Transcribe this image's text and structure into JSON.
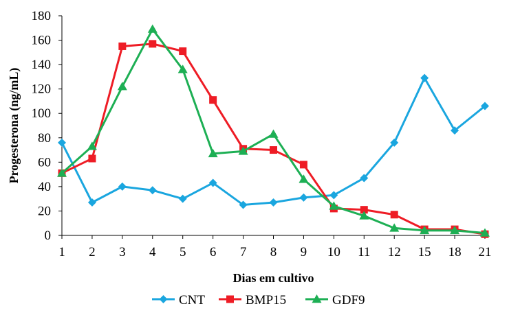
{
  "chart_data": {
    "type": "line",
    "title": "",
    "xlabel": "Dias em cultivo",
    "ylabel": "Progesterona (ng/mL)",
    "categories": [
      "1",
      "2",
      "3",
      "4",
      "5",
      "6",
      "7",
      "8",
      "9",
      "10",
      "11",
      "12",
      "15",
      "18",
      "21"
    ],
    "ylim": [
      0,
      180
    ],
    "yticks": [
      0,
      20,
      40,
      60,
      80,
      100,
      120,
      140,
      160,
      180
    ],
    "grid": false,
    "legend_position": "bottom",
    "series": [
      {
        "name": "CNT",
        "color": "#1aa6df",
        "marker": "diamond",
        "values": [
          76,
          27,
          40,
          37,
          30,
          43,
          25,
          27,
          31,
          33,
          47,
          76,
          129,
          86,
          106
        ]
      },
      {
        "name": "BMP15",
        "color": "#ee1c25",
        "marker": "square",
        "values": [
          51,
          63,
          155,
          157,
          151,
          111,
          71,
          70,
          58,
          22,
          21,
          17,
          5,
          5,
          1
        ]
      },
      {
        "name": "GDF9",
        "color": "#1daf54",
        "marker": "triangle",
        "values": [
          51,
          73,
          122,
          169,
          136,
          67,
          69,
          83,
          46,
          24,
          16,
          6,
          4,
          4,
          2
        ]
      }
    ]
  }
}
